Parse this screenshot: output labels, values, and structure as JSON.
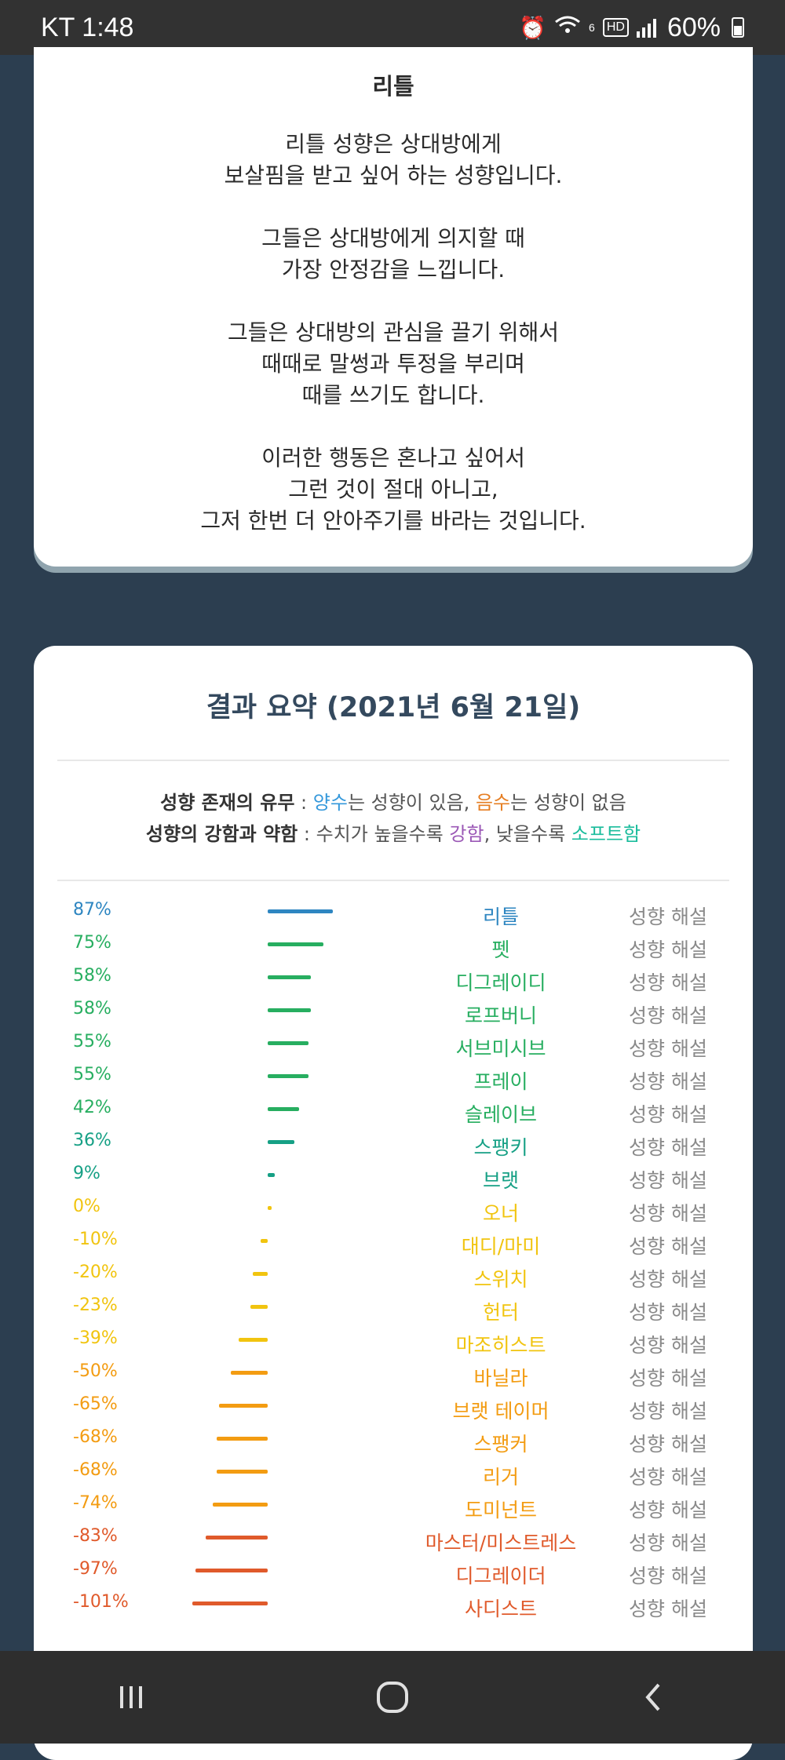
{
  "statusbar": {
    "carrier": "KT",
    "time": "1:48",
    "battery": "60%",
    "net_gen": "6",
    "hd": "HD"
  },
  "card1": {
    "title": "리틀",
    "paragraphs": [
      "리틀 성향은 상대방에게\n보살핌을 받고 싶어 하는 성향입니다.",
      "그들은 상대방에게 의지할 때\n가장 안정감을 느낍니다.",
      "그들은 상대방의 관심을 끌기 위해서\n때때로 말썽과 투정을 부리며\n때를 쓰기도 합니다.",
      "이러한 행동은 혼나고 싶어서\n그런 것이 절대 아니고,\n그저 한번 더 안아주기를 바라는 것입니다."
    ]
  },
  "summary": {
    "title": "결과 요약 (2021년 6월 21일)",
    "legend": {
      "line1_label": "성향 존재의 유무",
      "line1_sep": " : ",
      "positive": "양수",
      "line1_mid": "는 성향이 있음, ",
      "negative": "음수",
      "line1_end": "는 성향이 없음",
      "line2_label": "성향의 강함과 약함",
      "line2_sep": " : ",
      "line2_mid": "수치가 높을수록 ",
      "strong": "강함",
      "line2_mid2": ", 낮을수록 ",
      "soft": "소프트함"
    },
    "interp_label": "성향 해설"
  },
  "chart_data": {
    "type": "bar",
    "categories": [
      "리틀",
      "펫",
      "디그레이디",
      "로프버니",
      "서브미시브",
      "프레이",
      "슬레이브",
      "스팽키",
      "브랫",
      "오너",
      "대디/마미",
      "스위치",
      "헌터",
      "마조히스트",
      "바닐라",
      "브랫 테이머",
      "스팽커",
      "리거",
      "도미넌트",
      "마스터/미스트레스",
      "디그레이더",
      "사디스트"
    ],
    "values": [
      87,
      75,
      58,
      58,
      55,
      55,
      42,
      36,
      9,
      0,
      -10,
      -20,
      -23,
      -39,
      -50,
      -65,
      -68,
      -68,
      -74,
      -83,
      -97,
      -101
    ],
    "labels": [
      "87%",
      "75%",
      "58%",
      "58%",
      "55%",
      "55%",
      "42%",
      "36%",
      "9%",
      "0%",
      "-10%",
      "-20%",
      "-23%",
      "-39%",
      "-50%",
      "-65%",
      "-68%",
      "-68%",
      "-74%",
      "-83%",
      "-97%",
      "-101%"
    ],
    "colors": [
      "#2e86c1",
      "#27ae60",
      "#27ae60",
      "#27ae60",
      "#27ae60",
      "#27ae60",
      "#27ae60",
      "#16a085",
      "#16a085",
      "#f1c40f",
      "#f1c40f",
      "#f1c40f",
      "#f1c40f",
      "#f1c40f",
      "#f39c12",
      "#f39c12",
      "#f39c12",
      "#f39c12",
      "#f39c12",
      "#e05a2b",
      "#e05a2b",
      "#e05a2b"
    ]
  }
}
